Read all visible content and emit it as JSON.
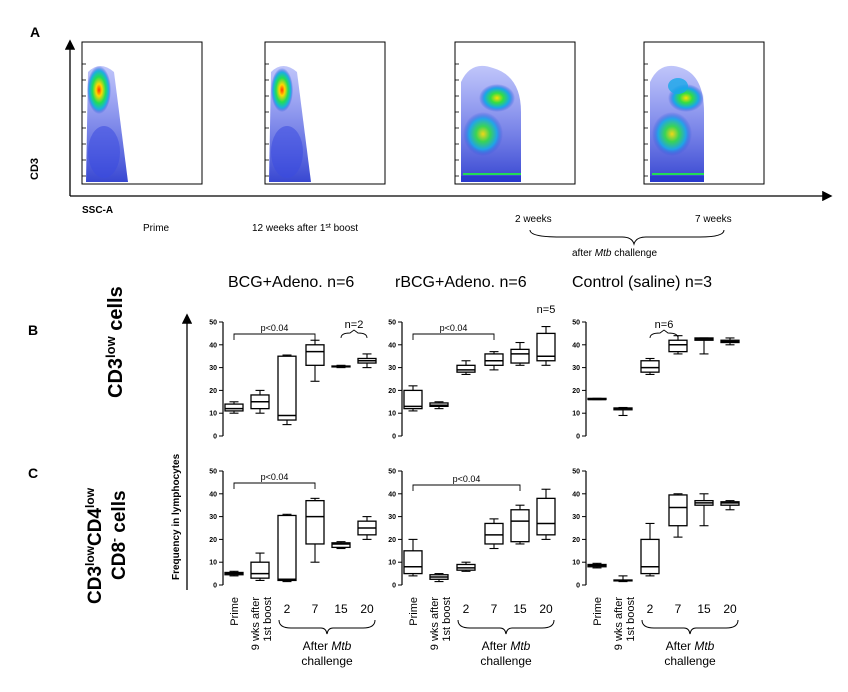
{
  "panel_a": {
    "label": "A",
    "y_axis_label": "CD3",
    "x_axis_label": "SSC-A",
    "plots": [
      {
        "caption": "Prime"
      },
      {
        "caption": "12 weeks after 1",
        "caption_sup": "st",
        "caption_tail": " boost"
      },
      {
        "caption": "2 weeks"
      },
      {
        "caption": "7 weeks"
      }
    ],
    "challenge_prefix": "after ",
    "challenge_italic": "Mtb",
    "challenge_suffix": " challenge"
  },
  "group_titles": [
    "BCG+Adeno. n=6",
    "rBCG+Adeno. n=6",
    "Control (saline) n=3"
  ],
  "row_labels": {
    "b": "B",
    "c": "C",
    "b_main": "CD3",
    "b_sup": "low",
    "b_tail": " cells",
    "c_line1_a": "CD3",
    "c_line1_sup1": "low",
    "c_line1_b": "CD4",
    "c_line1_sup2": "low",
    "c_line2_a": "CD8",
    "c_line2_sup": "-",
    "c_line2_tail": " cells"
  },
  "y_axis_title": "Frequency in lymphocytes",
  "x_categories": [
    "Prime",
    "9 wks after",
    "1st boost",
    "2",
    "7",
    "15",
    "20"
  ],
  "after_prefix": "After ",
  "after_italic": "Mtb",
  "after_line2": "challenge",
  "colors": {
    "ink": "#000000",
    "flow_bg": "#2233cc",
    "flow_hot": "#ff3300"
  },
  "chart_data": [
    {
      "type": "box",
      "row": "B",
      "group": "BCG+Adeno. n=6",
      "ylim": [
        0,
        50
      ],
      "yticks": [
        0,
        10,
        20,
        30,
        40,
        50
      ],
      "categories": [
        "Prime",
        "9 wks after 1st boost",
        "2",
        "7",
        "15",
        "20"
      ],
      "boxes": [
        {
          "min": 10,
          "q1": 11,
          "median": 12,
          "q3": 14,
          "max": 15
        },
        {
          "min": 10,
          "q1": 12,
          "median": 15,
          "q3": 18,
          "max": 20
        },
        {
          "min": 5,
          "q1": 7,
          "median": 9,
          "q3": 35,
          "max": 35.5
        },
        {
          "min": 24,
          "q1": 31,
          "median": 37,
          "q3": 40,
          "max": 42
        },
        {
          "min": 30,
          "q1": 30.3,
          "median": 30.5,
          "q3": 30.7,
          "max": 31
        },
        {
          "min": 30,
          "q1": 32,
          "median": 33,
          "q3": 34,
          "max": 36
        }
      ],
      "annotations": [
        "p<0.04",
        "n=2"
      ]
    },
    {
      "type": "box",
      "row": "B",
      "group": "rBCG+Adeno. n=6",
      "ylim": [
        0,
        50
      ],
      "yticks": [
        0,
        10,
        20,
        30,
        40,
        50
      ],
      "categories": [
        "Prime",
        "9 wks after 1st boost",
        "2",
        "7",
        "15",
        "20"
      ],
      "boxes": [
        {
          "min": 11,
          "q1": 12,
          "median": 13,
          "q3": 20,
          "max": 22
        },
        {
          "min": 12,
          "q1": 13,
          "median": 13.5,
          "q3": 14.5,
          "max": 15
        },
        {
          "min": 27,
          "q1": 28,
          "median": 29,
          "q3": 31,
          "max": 33
        },
        {
          "min": 29,
          "q1": 31,
          "median": 33,
          "q3": 36,
          "max": 37
        },
        {
          "min": 31,
          "q1": 32,
          "median": 36,
          "q3": 38,
          "max": 41
        },
        {
          "min": 31,
          "q1": 33,
          "median": 35,
          "q3": 45,
          "max": 48
        }
      ],
      "annotations": [
        "p<0.04",
        "n=5"
      ]
    },
    {
      "type": "box",
      "row": "B",
      "group": "Control (saline) n=3",
      "ylim": [
        0,
        50
      ],
      "yticks": [
        0,
        10,
        20,
        30,
        40,
        50
      ],
      "categories": [
        "Prime",
        "9 wks after 1st boost",
        "2",
        "7",
        "15",
        "20"
      ],
      "boxes": [
        {
          "min": 16,
          "q1": 16,
          "median": 16,
          "q3": 16.5,
          "max": 16.5
        },
        {
          "min": 9,
          "q1": 11.5,
          "median": 12,
          "q3": 12.3,
          "max": 12.5
        },
        {
          "min": 27,
          "q1": 28,
          "median": 30,
          "q3": 33,
          "max": 34
        },
        {
          "min": 36,
          "q1": 37,
          "median": 40,
          "q3": 42,
          "max": 44
        },
        {
          "min": 36,
          "q1": 42,
          "median": 42.5,
          "q3": 43,
          "max": 43
        },
        {
          "min": 40,
          "q1": 41,
          "median": 41.5,
          "q3": 42,
          "max": 43
        }
      ],
      "annotations": [
        "n=6"
      ]
    },
    {
      "type": "box",
      "row": "C",
      "group": "BCG+Adeno. n=6",
      "ylim": [
        0,
        50
      ],
      "yticks": [
        0,
        10,
        20,
        30,
        40,
        50
      ],
      "categories": [
        "Prime",
        "9 wks after 1st boost",
        "2",
        "7",
        "15",
        "20"
      ],
      "boxes": [
        {
          "min": 4,
          "q1": 4.5,
          "median": 5,
          "q3": 5.5,
          "max": 6
        },
        {
          "min": 2,
          "q1": 3,
          "median": 5,
          "q3": 10,
          "max": 14
        },
        {
          "min": 1.5,
          "q1": 2,
          "median": 2.5,
          "q3": 30.5,
          "max": 31
        },
        {
          "min": 10,
          "q1": 18,
          "median": 30,
          "q3": 37,
          "max": 38
        },
        {
          "min": 16,
          "q1": 16.5,
          "median": 18,
          "q3": 18.5,
          "max": 19
        },
        {
          "min": 20,
          "q1": 22,
          "median": 25,
          "q3": 28,
          "max": 30
        }
      ],
      "annotations": [
        "p<0.04"
      ]
    },
    {
      "type": "box",
      "row": "C",
      "group": "rBCG+Adeno. n=6",
      "ylim": [
        0,
        50
      ],
      "yticks": [
        0,
        10,
        20,
        30,
        40,
        50
      ],
      "categories": [
        "Prime",
        "9 wks after 1st boost",
        "2",
        "7",
        "15",
        "20"
      ],
      "boxes": [
        {
          "min": 4,
          "q1": 5,
          "median": 8,
          "q3": 15,
          "max": 20
        },
        {
          "min": 1.5,
          "q1": 2.5,
          "median": 3.5,
          "q3": 4.5,
          "max": 5
        },
        {
          "min": 6,
          "q1": 6.5,
          "median": 7.5,
          "q3": 9,
          "max": 10
        },
        {
          "min": 16,
          "q1": 18,
          "median": 22,
          "q3": 27,
          "max": 29
        },
        {
          "min": 18,
          "q1": 19,
          "median": 28,
          "q3": 33,
          "max": 35
        },
        {
          "min": 20,
          "q1": 22,
          "median": 27,
          "q3": 38,
          "max": 42
        }
      ],
      "annotations": [
        "p<0.04"
      ]
    },
    {
      "type": "box",
      "row": "C",
      "group": "Control (saline) n=3",
      "ylim": [
        0,
        50
      ],
      "yticks": [
        0,
        10,
        20,
        30,
        40,
        50
      ],
      "categories": [
        "Prime",
        "9 wks after 1st boost",
        "2",
        "7",
        "15",
        "20"
      ],
      "boxes": [
        {
          "min": 7.5,
          "q1": 8,
          "median": 8.5,
          "q3": 9,
          "max": 9.5
        },
        {
          "min": 1.5,
          "q1": 1.8,
          "median": 2,
          "q3": 2.2,
          "max": 4
        },
        {
          "min": 4,
          "q1": 5,
          "median": 8,
          "q3": 20,
          "max": 27
        },
        {
          "min": 21,
          "q1": 26,
          "median": 34,
          "q3": 39.5,
          "max": 40
        },
        {
          "min": 26,
          "q1": 35,
          "median": 36,
          "q3": 37,
          "max": 40
        },
        {
          "min": 33,
          "q1": 35,
          "median": 36,
          "q3": 36.5,
          "max": 37
        }
      ],
      "annotations": []
    }
  ]
}
